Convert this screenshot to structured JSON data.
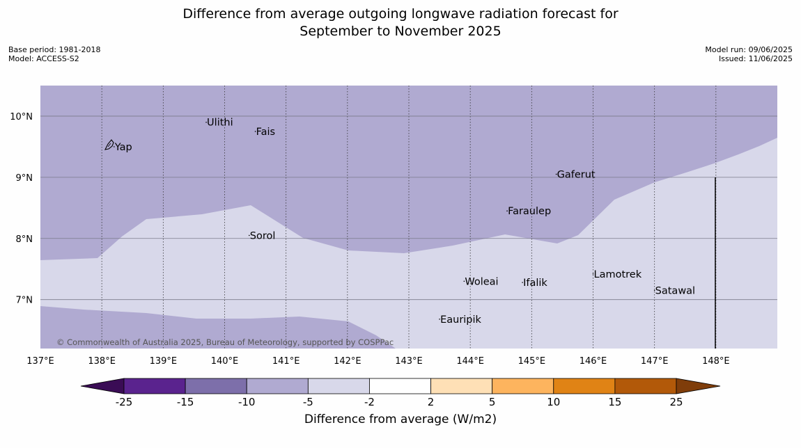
{
  "title_line1": "Difference from average outgoing longwave radiation forecast for",
  "title_line2": "September to November 2025",
  "meta_left": {
    "base_period": "Base period: 1981-2018",
    "model": "Model: ACCESS-S2"
  },
  "meta_right": {
    "model_run": "Model run: 09/06/2025",
    "issued": "Issued: 11/06/2025"
  },
  "copyright": "© Commonwealth of Australia 2025, Bureau of Meteorology, supported by COSPPac",
  "map": {
    "lon_range": [
      137,
      149
    ],
    "lat_range": [
      6.2,
      10.5
    ],
    "lon_ticks": [
      "137°E",
      "138°E",
      "139°E",
      "140°E",
      "141°E",
      "142°E",
      "143°E",
      "144°E",
      "145°E",
      "146°E",
      "147°E",
      "148°E"
    ],
    "lat_ticks": [
      "7°N",
      "8°N",
      "9°N",
      "10°N"
    ],
    "places": [
      {
        "name": "Yap",
        "lon": 138.2,
        "lat": 9.5
      },
      {
        "name": "Ulithi",
        "lon": 139.7,
        "lat": 9.9
      },
      {
        "name": "Fais",
        "lon": 140.5,
        "lat": 9.75
      },
      {
        "name": "Sorol",
        "lon": 140.4,
        "lat": 8.05
      },
      {
        "name": "Gaferut",
        "lon": 145.4,
        "lat": 9.05
      },
      {
        "name": "Faraulep",
        "lon": 144.6,
        "lat": 8.45
      },
      {
        "name": "Woleai",
        "lon": 143.9,
        "lat": 7.3
      },
      {
        "name": "Ifalik",
        "lon": 144.85,
        "lat": 7.28
      },
      {
        "name": "Lamotrek",
        "lon": 146.0,
        "lat": 7.42
      },
      {
        "name": "Satawal",
        "lon": 147.0,
        "lat": 7.15
      },
      {
        "name": "Eauripik",
        "lon": 143.5,
        "lat": 6.68
      }
    ],
    "eez_line_lon": 148,
    "colors": {
      "minus10_to_minus5": "#b0aad1",
      "minus5_to_minus2": "#d8d8ea"
    }
  },
  "colorbar": {
    "label": "Difference from average (W/m2)",
    "ticks": [
      "-25",
      "-15",
      "-10",
      "-5",
      "-2",
      "2",
      "5",
      "10",
      "15",
      "25"
    ],
    "colors": [
      "#3a0c55",
      "#5a238e",
      "#7d6faa",
      "#b0aad1",
      "#d8d8ea",
      "#ffffff",
      "#fee0b6",
      "#fdb45e",
      "#e08315",
      "#b25909",
      "#7f3d0a"
    ]
  }
}
